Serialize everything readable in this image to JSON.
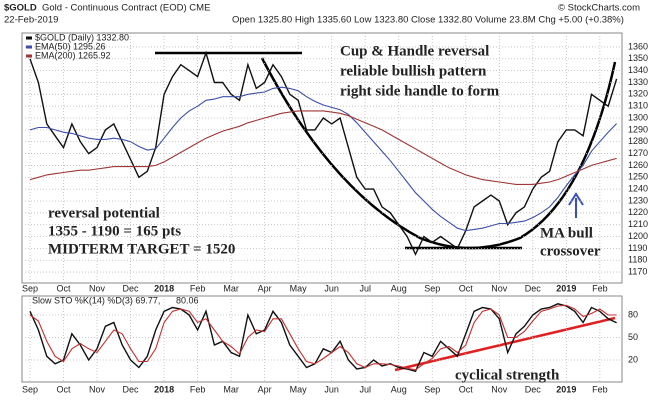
{
  "header": {
    "symbol": "$GOLD",
    "name": "Gold - Continuous Contract (EOD) CME",
    "date": "22-Feb-2019",
    "quote": "Open 1325.80  High 1335.60  Low 1323.80  Close 1332.80  Volume 23.8M  Chg +5.00 (+0.38%)",
    "source": "© StockCharts.com"
  },
  "chart_data": [
    {
      "type": "line",
      "categories": [
        "Sep",
        null,
        null,
        null,
        "Oct",
        null,
        null,
        null,
        "Nov",
        null,
        null,
        null,
        "Dec",
        null,
        null,
        null,
        "2018",
        null,
        null,
        null,
        "Feb",
        null,
        null,
        null,
        "Mar",
        null,
        null,
        null,
        "Apr",
        null,
        null,
        null,
        "May",
        null,
        null,
        null,
        "Jun",
        null,
        null,
        null,
        "Jul",
        null,
        null,
        null,
        "Aug",
        null,
        null,
        null,
        "Sep",
        null,
        null,
        null,
        "Oct",
        null,
        null,
        null,
        "Nov",
        null,
        null,
        null,
        "Dec",
        null,
        null,
        null,
        "2019",
        null,
        null,
        null,
        "Feb",
        null,
        null
      ],
      "series": [
        {
          "name": "$GOLD (Daily) 1332.80",
          "color": "#111111",
          "values": [
            1350,
            1330,
            1295,
            1285,
            1275,
            1295,
            1280,
            1270,
            1275,
            1290,
            1295,
            1280,
            1265,
            1250,
            1255,
            1275,
            1320,
            1335,
            1345,
            1340,
            1335,
            1355,
            1330,
            1330,
            1320,
            1315,
            1345,
            1325,
            1330,
            1345,
            1335,
            1320,
            1315,
            1290,
            1290,
            1300,
            1295,
            1300,
            1275,
            1250,
            1240,
            1240,
            1225,
            1220,
            1210,
            1200,
            1185,
            1200,
            1195,
            1200,
            1195,
            1190,
            1205,
            1225,
            1230,
            1235,
            1230,
            1210,
            1220,
            1225,
            1240,
            1250,
            1255,
            1280,
            1290,
            1290,
            1285,
            1320,
            1315,
            1310,
            1333
          ]
        },
        {
          "name": "EMA(50) 1295.26",
          "color": "#3d4fa8",
          "values": [
            1290,
            1292,
            1292,
            1290,
            1288,
            1287,
            1285,
            1283,
            1282,
            1282,
            1283,
            1282,
            1280,
            1276,
            1273,
            1274,
            1283,
            1292,
            1300,
            1306,
            1310,
            1315,
            1316,
            1318,
            1318,
            1318,
            1320,
            1321,
            1322,
            1325,
            1326,
            1325,
            1323,
            1318,
            1314,
            1311,
            1309,
            1307,
            1303,
            1296,
            1288,
            1280,
            1272,
            1264,
            1255,
            1246,
            1237,
            1230,
            1223,
            1217,
            1212,
            1207,
            1205,
            1206,
            1207,
            1209,
            1211,
            1211,
            1212,
            1213,
            1216,
            1220,
            1225,
            1233,
            1243,
            1252,
            1260,
            1272,
            1280,
            1288,
            1295.26
          ]
        },
        {
          "name": "EMA(200) 1265.92",
          "color": "#a03535",
          "values": [
            1248,
            1250,
            1252,
            1253,
            1254,
            1255,
            1256,
            1256,
            1257,
            1258,
            1259,
            1259,
            1259,
            1259,
            1259,
            1260,
            1263,
            1267,
            1271,
            1275,
            1279,
            1283,
            1286,
            1289,
            1291,
            1293,
            1296,
            1298,
            1300,
            1302,
            1304,
            1305,
            1306,
            1306,
            1306,
            1306,
            1305,
            1304,
            1302,
            1299,
            1296,
            1293,
            1290,
            1286,
            1282,
            1278,
            1274,
            1270,
            1266,
            1262,
            1258,
            1255,
            1252,
            1250,
            1248,
            1247,
            1246,
            1245,
            1244,
            1244,
            1244,
            1245,
            1246,
            1248,
            1251,
            1254,
            1257,
            1260,
            1262,
            1264,
            1265.92
          ]
        }
      ],
      "ylim": [
        1165,
        1365
      ],
      "yticks": [
        1170,
        1180,
        1190,
        1200,
        1210,
        1220,
        1230,
        1240,
        1250,
        1260,
        1270,
        1280,
        1290,
        1300,
        1310,
        1320,
        1330,
        1340,
        1350,
        1360
      ],
      "grid": true,
      "annotations": [
        {
          "text": "Cup & Handle reversal",
          "color": "#3a4fc0"
        },
        {
          "text": "reliable bullish pattern",
          "color": "#3a4fc0"
        },
        {
          "text": "right side handle to form",
          "color": "#3a4fc0"
        },
        {
          "text": "reversal potential",
          "color": "#3a4fc0"
        },
        {
          "text": "1355 - 1190 = 165 pts",
          "color": "#3a4fc0"
        },
        {
          "text": "MIDTERM TARGET  = 1520",
          "color": "#3a4fc0"
        },
        {
          "text": "MA bull",
          "color": "#3a4fc0"
        },
        {
          "text": "crossover",
          "color": "#3a4fc0"
        }
      ]
    },
    {
      "type": "line",
      "categories": [
        "Sep",
        null,
        null,
        null,
        "Oct",
        null,
        null,
        null,
        "Nov",
        null,
        null,
        null,
        "Dec",
        null,
        null,
        null,
        "2018",
        null,
        null,
        null,
        "Feb",
        null,
        null,
        null,
        "Mar",
        null,
        null,
        null,
        "Apr",
        null,
        null,
        null,
        "May",
        null,
        null,
        null,
        "Jun",
        null,
        null,
        null,
        "Jul",
        null,
        null,
        null,
        "Aug",
        null,
        null,
        null,
        "Sep",
        null,
        null,
        null,
        "Oct",
        null,
        null,
        null,
        "Nov",
        null,
        null,
        null,
        "Dec",
        null,
        null,
        null,
        "2019",
        null,
        null,
        null,
        "Feb",
        null,
        null
      ],
      "series": [
        {
          "name": "Slow STO %K(14) %D(3) 69.77,",
          "color": "#111111",
          "values": [
            85,
            60,
            25,
            15,
            20,
            55,
            40,
            20,
            35,
            65,
            70,
            40,
            20,
            10,
            25,
            60,
            85,
            90,
            88,
            80,
            60,
            85,
            40,
            45,
            30,
            25,
            80,
            55,
            60,
            85,
            70,
            40,
            25,
            10,
            15,
            35,
            30,
            45,
            20,
            8,
            10,
            20,
            12,
            15,
            10,
            8,
            5,
            30,
            25,
            45,
            35,
            25,
            55,
            85,
            90,
            88,
            75,
            30,
            55,
            65,
            80,
            88,
            90,
            95,
            92,
            85,
            70,
            90,
            85,
            75,
            69.77
          ]
        },
        {
          "name": "80.06",
          "color": "#c03030",
          "values": [
            80,
            72,
            45,
            25,
            18,
            35,
            42,
            35,
            30,
            45,
            60,
            55,
            35,
            18,
            18,
            35,
            70,
            85,
            88,
            85,
            70,
            75,
            60,
            45,
            38,
            28,
            50,
            60,
            58,
            75,
            75,
            55,
            35,
            18,
            15,
            22,
            30,
            38,
            30,
            15,
            10,
            15,
            15,
            14,
            12,
            9,
            7,
            15,
            22,
            35,
            38,
            30,
            40,
            70,
            85,
            88,
            80,
            50,
            50,
            58,
            72,
            85,
            88,
            92,
            93,
            88,
            78,
            82,
            88,
            80,
            80.06
          ]
        }
      ],
      "ylim": [
        0,
        100
      ],
      "yticks": [
        20,
        50,
        80
      ],
      "grid": true,
      "annotations": [
        {
          "text": "cyclical strength",
          "color": "#e02020"
        }
      ]
    }
  ]
}
